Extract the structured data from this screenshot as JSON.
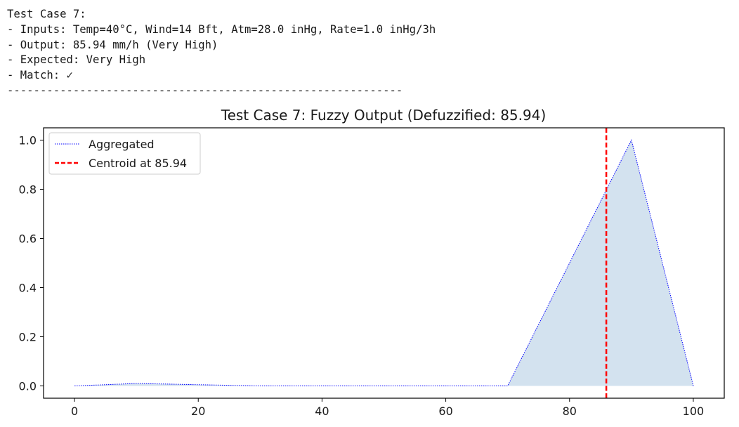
{
  "console": {
    "lines": [
      "Test Case 7:",
      "- Inputs: Temp=40°C, Wind=14 Bft, Atm=28.0 inHg, Rate=1.0 inHg/3h",
      "- Output: 85.94 mm/h (Very High)",
      "- Expected: Very High",
      "- Match: ✓",
      "------------------------------------------------------------"
    ]
  },
  "chart_data": {
    "type": "area",
    "title": "Test Case 7: Fuzzy Output (Defuzzified: 85.94)",
    "xlabel": "",
    "ylabel": "",
    "xlim": [
      -5,
      105
    ],
    "ylim": [
      -0.05,
      1.05
    ],
    "x_ticks": [
      0,
      20,
      40,
      60,
      80,
      100
    ],
    "y_ticks": [
      0.0,
      0.2,
      0.4,
      0.6,
      0.8,
      1.0
    ],
    "x_tick_labels": [
      "0",
      "20",
      "40",
      "60",
      "80",
      "100"
    ],
    "y_tick_labels": [
      "0.0",
      "0.2",
      "0.4",
      "0.6",
      "0.8",
      "1.0"
    ],
    "grid": false,
    "legend_position": "top-left",
    "series": [
      {
        "name": "Aggregated",
        "style": "dotted",
        "color": "#0000ff",
        "fill_color": "#d3e2ef",
        "x": [
          0,
          10,
          20,
          30,
          40,
          50,
          60,
          70,
          80,
          90,
          100
        ],
        "y": [
          0.0,
          0.01,
          0.005,
          0.0,
          0.0,
          0.0,
          0.0,
          0.0,
          0.5,
          1.0,
          0.0
        ]
      },
      {
        "name": "Centroid at 85.94",
        "style": "dashed",
        "color": "#ff0000",
        "kind": "vertical-line",
        "x_value": 85.94
      }
    ]
  }
}
